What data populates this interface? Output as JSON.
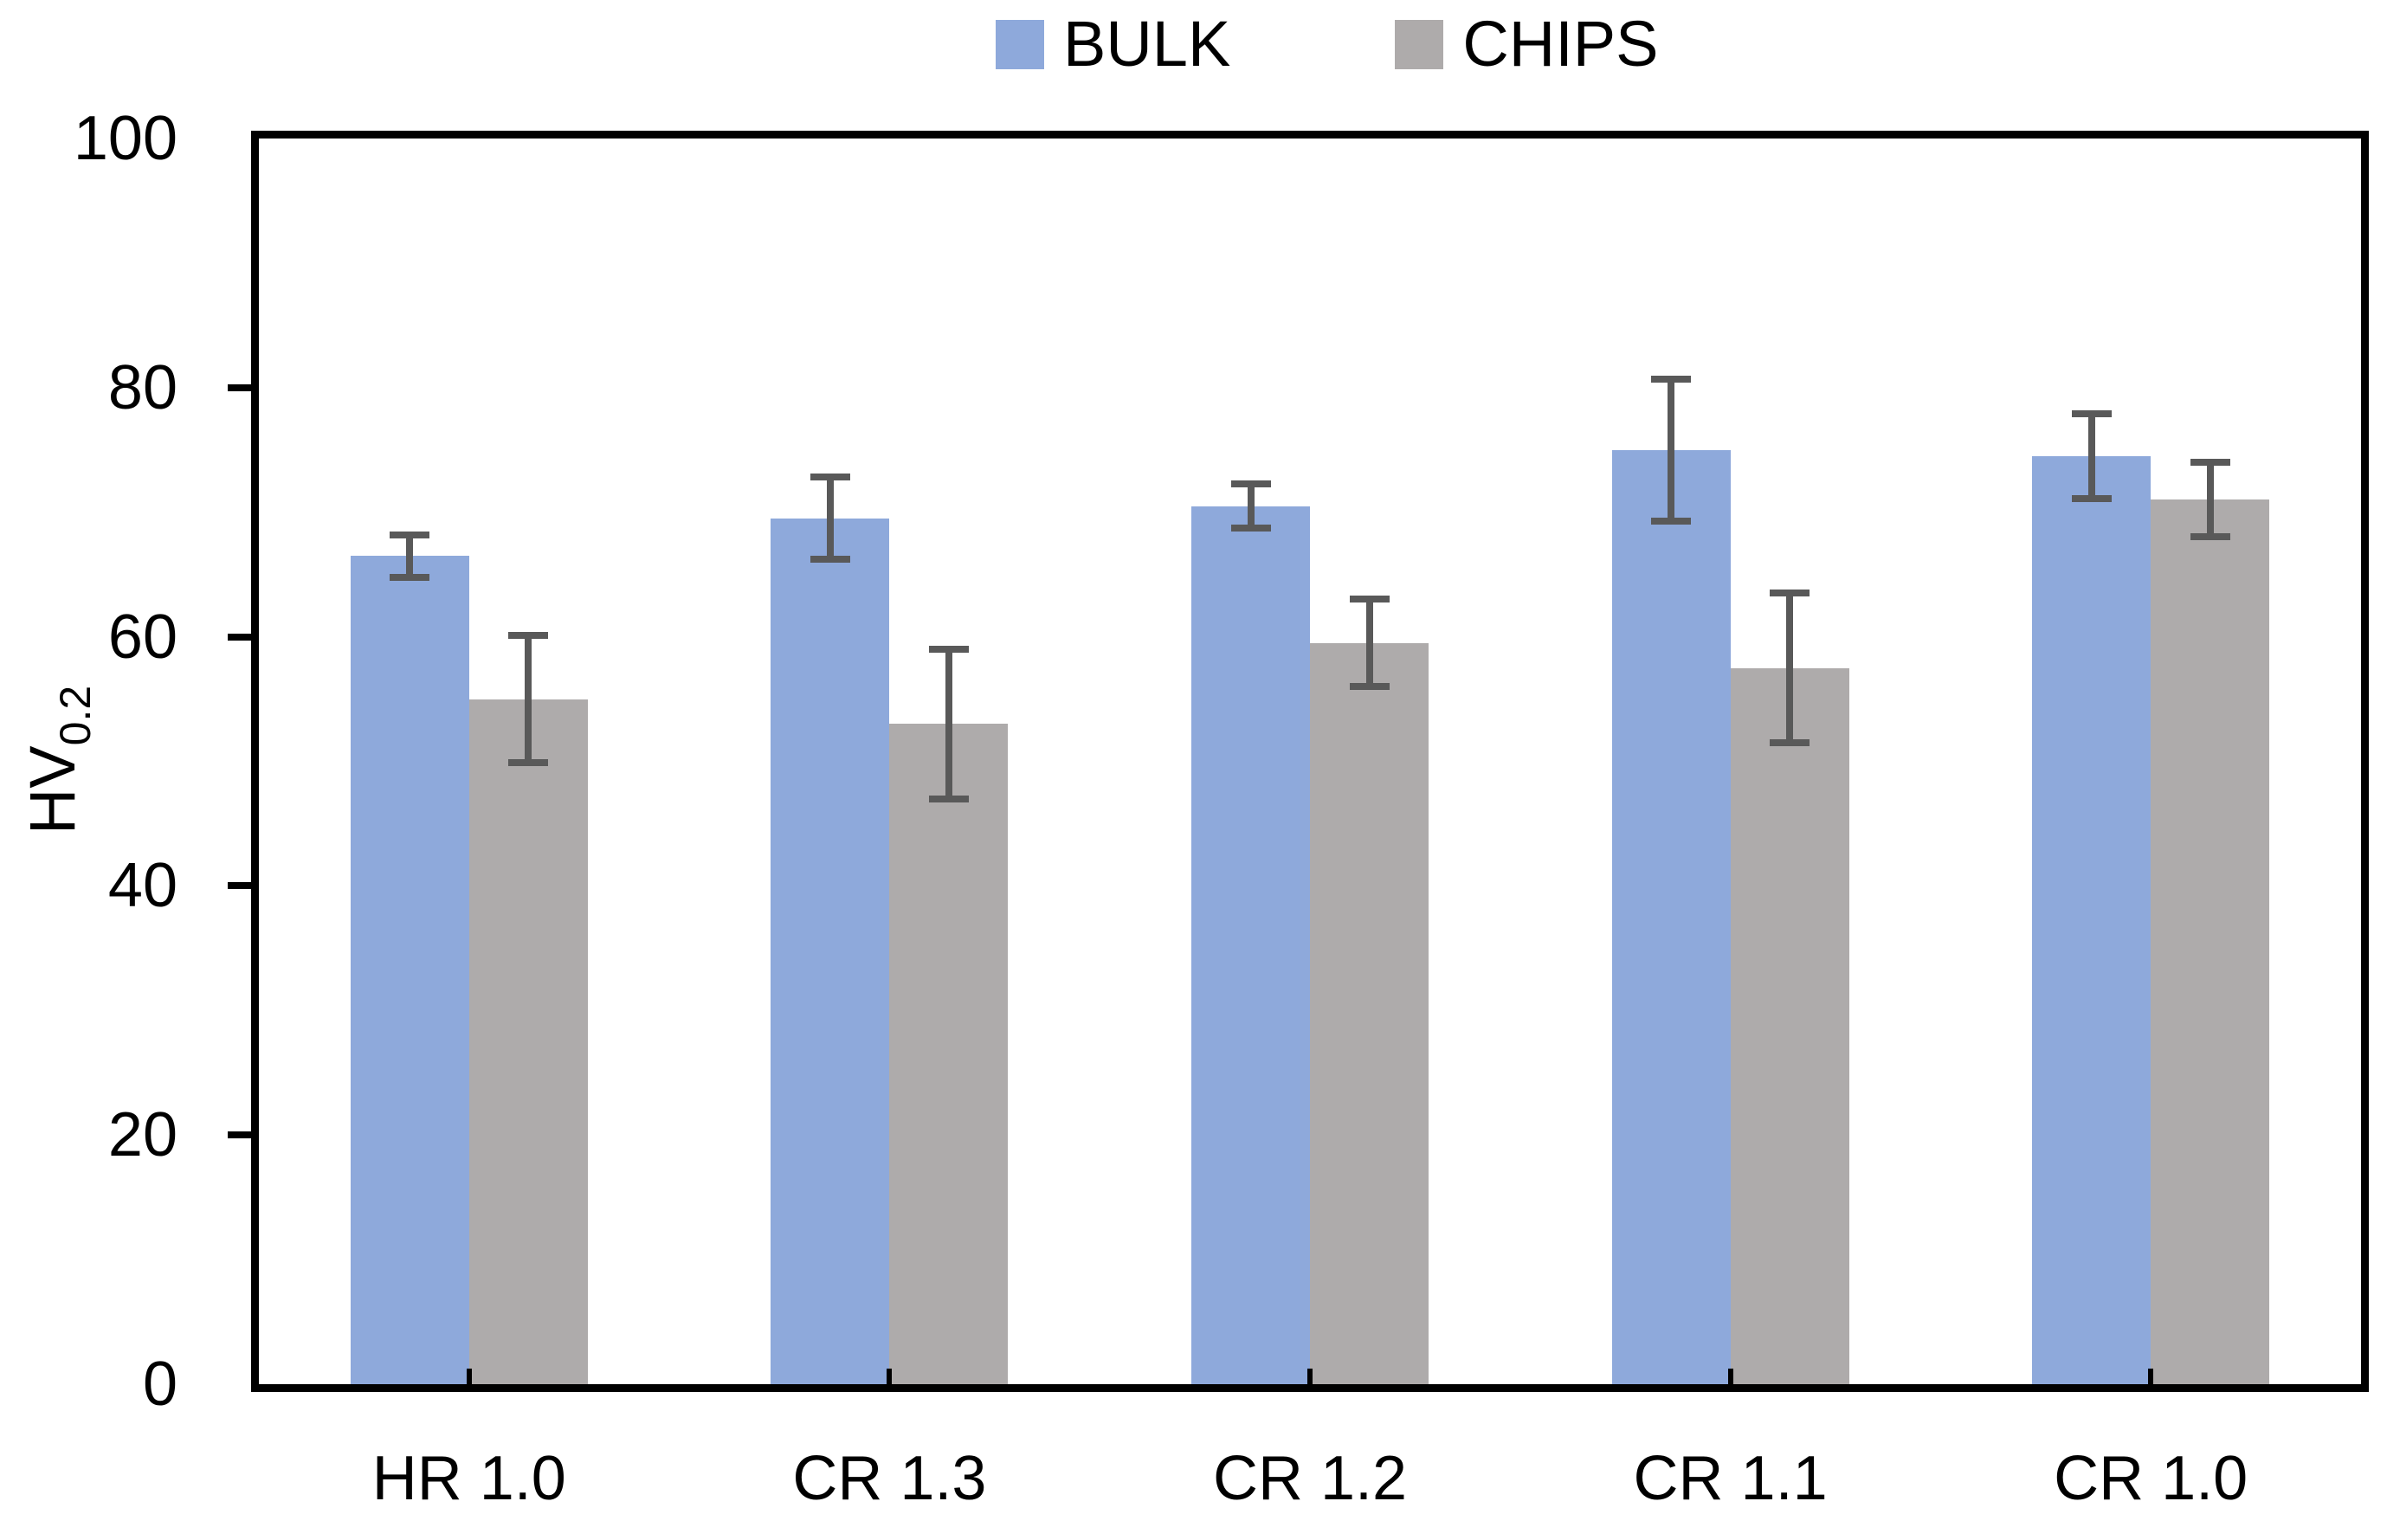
{
  "chart_data": {
    "type": "bar",
    "title": "",
    "categories": [
      "HR 1.0",
      "CR 1.3",
      "CR 1.2",
      "CR 1.1",
      "CR 1.0"
    ],
    "series": [
      {
        "name": "BULK",
        "color": "#8EA9DB",
        "values": [
          66.5,
          69.5,
          70.5,
          75.0,
          74.5
        ],
        "errors": [
          1.7,
          3.3,
          1.8,
          5.7,
          3.4
        ]
      },
      {
        "name": "CHIPS",
        "color": "#AEABAB",
        "values": [
          55.0,
          53.0,
          59.5,
          57.5,
          71.0
        ],
        "errors": [
          5.1,
          6.0,
          3.5,
          6.0,
          3.0
        ]
      }
    ],
    "xlabel": "",
    "ylabel": "HV",
    "ylabel_subscript": "0.2",
    "ylim": [
      0,
      100
    ],
    "yticks": [
      0,
      20,
      40,
      60,
      80,
      100
    ],
    "grid": false,
    "legend_position": "top-center",
    "error_bar_color": "#595959",
    "axis_color": "#000000",
    "background_color": "#FFFFFF"
  }
}
